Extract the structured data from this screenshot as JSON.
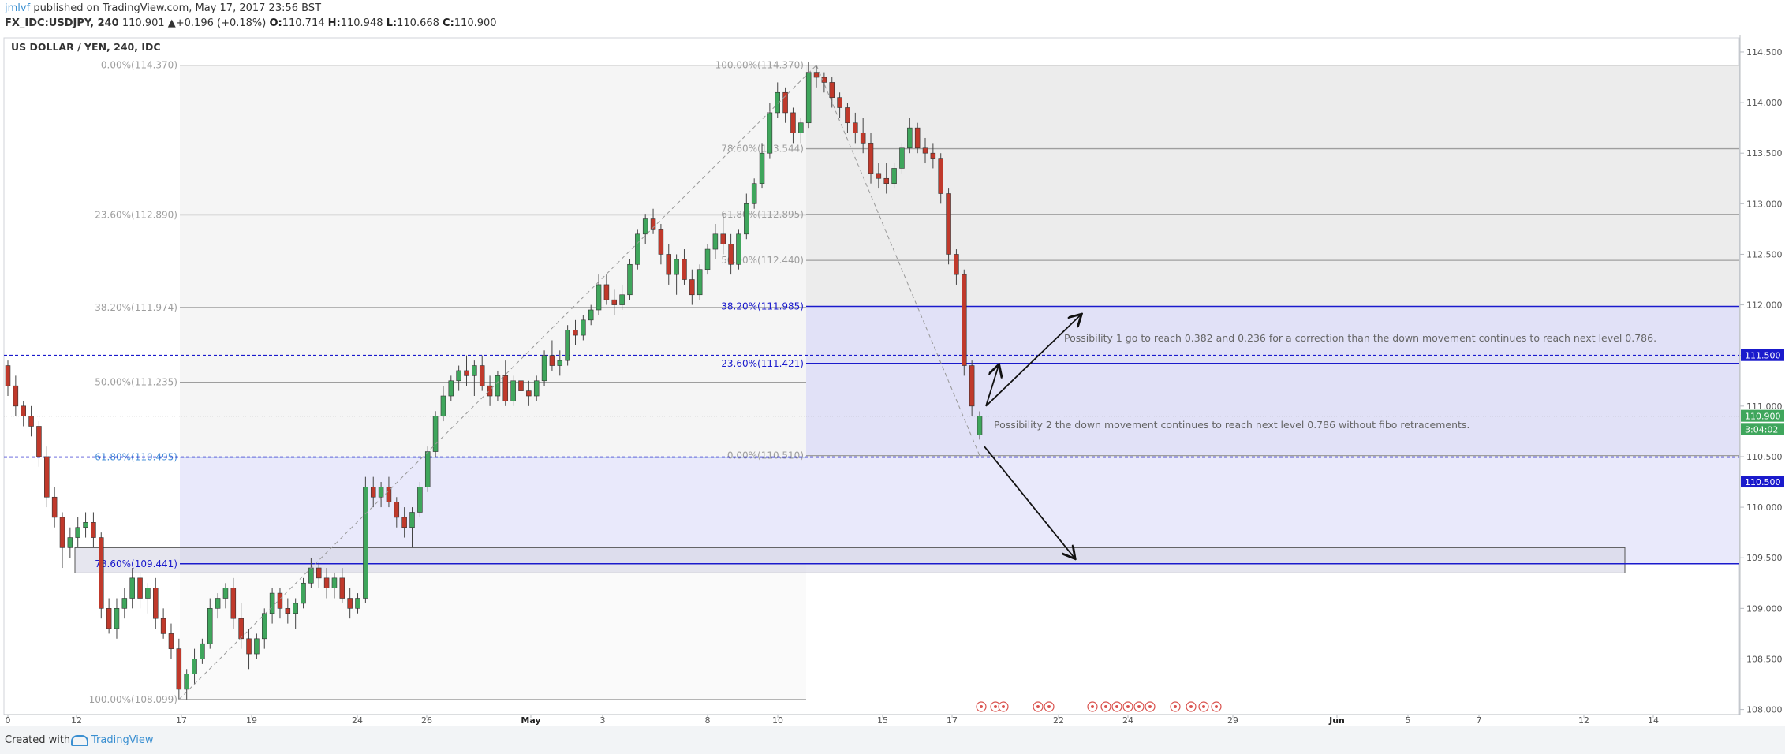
{
  "header": {
    "user": "jmlvf",
    "published_text": "published on TradingView.com, May 17, 2017 23:56 BST",
    "symbol_line": "FX_IDC:USDJPY, 240",
    "last_price": "110.901",
    "change_arrow": "▲",
    "change": "+0.196 (+0.18%)",
    "o_label": "O:",
    "o_value": "110.714",
    "h_label": "H:",
    "h_value": "110.948",
    "l_label": "L:",
    "l_value": "110.668",
    "c_label": "C:",
    "c_value": "110.900"
  },
  "footer": {
    "made_with": "Created with",
    "brand": "TradingView"
  },
  "chart_data": {
    "type": "candlestick",
    "title": "US DOLLAR / YEN, 240, IDC",
    "ylim": [
      107.95,
      114.64
    ],
    "y_ticks": [
      "114.500",
      "114.000",
      "113.500",
      "113.000",
      "112.500",
      "112.000",
      "111.500",
      "111.000",
      "110.500",
      "110.000",
      "109.500",
      "109.000",
      "108.500",
      "108.000"
    ],
    "x_ticks": [
      "0",
      "12",
      "17",
      "19",
      "24",
      "26",
      "May",
      "3",
      "8",
      "10",
      "15",
      "17",
      "22",
      "24",
      "29",
      "Jun",
      "5",
      "7",
      "12",
      "14"
    ],
    "price_badges": [
      {
        "value": "111.500",
        "style": "blue",
        "price": 111.5
      },
      {
        "value": "110.900",
        "style": "green",
        "price": 110.9
      },
      {
        "value": "3:04:02",
        "style": "green",
        "price": 110.77
      },
      {
        "value": "110.500",
        "style": "blue",
        "price": 110.25
      }
    ],
    "fib_retracement_1": {
      "from_price": 108.099,
      "to_price": 114.37,
      "levels": [
        {
          "label": "0.00%(114.370)",
          "price": 114.37,
          "color": "#9e9e9e"
        },
        {
          "label": "23.60%(112.890)",
          "price": 112.89,
          "color": "#9e9e9e"
        },
        {
          "label": "38.20%(111.974)",
          "price": 111.974,
          "color": "#9e9e9e"
        },
        {
          "label": "50.00%(111.235)",
          "price": 111.235,
          "color": "#9e9e9e"
        },
        {
          "label": "61.80%(110.495)",
          "price": 110.495,
          "color": "#4a90d9"
        },
        {
          "label": "78.60%(109.441)",
          "price": 109.441,
          "color": "#1a1acc"
        },
        {
          "label": "100.00%(108.099)",
          "price": 108.099,
          "color": "#9e9e9e"
        }
      ]
    },
    "fib_retracement_2": {
      "from_price": 114.37,
      "to_price": 110.51,
      "levels": [
        {
          "label": "100.00%(114.370)",
          "price": 114.37,
          "color": "#9e9e9e"
        },
        {
          "label": "78.60%(113.544)",
          "price": 113.544,
          "color": "#9e9e9e"
        },
        {
          "label": "61.80%(112.895)",
          "price": 112.895,
          "color": "#9e9e9e"
        },
        {
          "label": "50.00%(112.440)",
          "price": 112.44,
          "color": "#9e9e9e"
        },
        {
          "label": "38.20%(111.985)",
          "price": 111.985,
          "color": "#1a1acc"
        },
        {
          "label": "23.60%(111.421)",
          "price": 111.421,
          "color": "#1a1acc"
        },
        {
          "label": "0.00%(110.510)",
          "price": 110.51,
          "color": "#9e9e9e"
        }
      ]
    },
    "horizontal_lines": [
      {
        "price": 111.5,
        "style": "dashed",
        "color": "#1a1acc"
      },
      {
        "price": 110.495,
        "style": "dashed",
        "color": "#1a1acc"
      },
      {
        "price": 110.9,
        "style": "dotted",
        "color": "#888888"
      }
    ],
    "annotations": [
      {
        "text": "Possibility 1 go to reach 0.382 and 0.236 for a correction than the down movement continues to reach next level 0.786."
      },
      {
        "text": "Possibility 2 the down movement continues to reach next level 0.786 without fibo retracements."
      }
    ],
    "candles": [
      [
        111.4,
        111.45,
        111.1,
        111.2
      ],
      [
        111.2,
        111.3,
        110.9,
        111.0
      ],
      [
        111.0,
        111.05,
        110.8,
        110.9
      ],
      [
        110.9,
        111.0,
        110.7,
        110.8
      ],
      [
        110.8,
        110.85,
        110.4,
        110.5
      ],
      [
        110.5,
        110.6,
        110.0,
        110.1
      ],
      [
        110.1,
        110.2,
        109.8,
        109.9
      ],
      [
        109.9,
        109.95,
        109.4,
        109.6
      ],
      [
        109.6,
        109.8,
        109.5,
        109.7
      ],
      [
        109.7,
        109.9,
        109.6,
        109.8
      ],
      [
        109.8,
        109.95,
        109.7,
        109.85
      ],
      [
        109.85,
        109.95,
        109.6,
        109.7
      ],
      [
        109.7,
        109.75,
        108.9,
        109.0
      ],
      [
        109.0,
        109.1,
        108.75,
        108.8
      ],
      [
        108.8,
        109.1,
        108.7,
        109.0
      ],
      [
        109.0,
        109.2,
        108.9,
        109.1
      ],
      [
        109.1,
        109.4,
        109.0,
        109.3
      ],
      [
        109.3,
        109.35,
        109.0,
        109.1
      ],
      [
        109.1,
        109.25,
        108.95,
        109.2
      ],
      [
        109.2,
        109.3,
        108.8,
        108.9
      ],
      [
        108.9,
        109.0,
        108.7,
        108.75
      ],
      [
        108.75,
        108.85,
        108.5,
        108.6
      ],
      [
        108.6,
        108.7,
        108.1,
        108.2
      ],
      [
        108.2,
        108.4,
        108.1,
        108.35
      ],
      [
        108.35,
        108.6,
        108.25,
        108.5
      ],
      [
        108.5,
        108.7,
        108.45,
        108.65
      ],
      [
        108.65,
        109.1,
        108.6,
        109.0
      ],
      [
        109.0,
        109.15,
        108.9,
        109.1
      ],
      [
        109.1,
        109.25,
        109.0,
        109.2
      ],
      [
        109.2,
        109.3,
        108.8,
        108.9
      ],
      [
        108.9,
        109.05,
        108.6,
        108.7
      ],
      [
        108.7,
        108.8,
        108.4,
        108.55
      ],
      [
        108.55,
        108.75,
        108.5,
        108.7
      ],
      [
        108.7,
        109.0,
        108.6,
        108.95
      ],
      [
        108.95,
        109.2,
        108.85,
        109.15
      ],
      [
        109.15,
        109.2,
        108.9,
        109.0
      ],
      [
        109.0,
        109.1,
        108.85,
        108.95
      ],
      [
        108.95,
        109.1,
        108.8,
        109.05
      ],
      [
        109.05,
        109.3,
        109.0,
        109.25
      ],
      [
        109.25,
        109.5,
        109.2,
        109.4
      ],
      [
        109.4,
        109.45,
        109.2,
        109.3
      ],
      [
        109.3,
        109.4,
        109.1,
        109.2
      ],
      [
        109.2,
        109.35,
        109.1,
        109.3
      ],
      [
        109.3,
        109.4,
        109.05,
        109.1
      ],
      [
        109.1,
        109.2,
        108.9,
        109.0
      ],
      [
        109.0,
        109.15,
        108.95,
        109.1
      ],
      [
        109.1,
        110.3,
        109.05,
        110.2
      ],
      [
        110.2,
        110.3,
        110.0,
        110.1
      ],
      [
        110.1,
        110.25,
        110.0,
        110.2
      ],
      [
        110.2,
        110.3,
        110.0,
        110.05
      ],
      [
        110.05,
        110.1,
        109.8,
        109.9
      ],
      [
        109.9,
        110.0,
        109.7,
        109.8
      ],
      [
        109.8,
        110.0,
        109.6,
        109.95
      ],
      [
        109.95,
        110.25,
        109.9,
        110.2
      ],
      [
        110.2,
        110.6,
        110.15,
        110.55
      ],
      [
        110.55,
        110.95,
        110.5,
        110.9
      ],
      [
        110.9,
        111.2,
        110.85,
        111.1
      ],
      [
        111.1,
        111.3,
        111.05,
        111.25
      ],
      [
        111.25,
        111.4,
        111.15,
        111.35
      ],
      [
        111.35,
        111.5,
        111.2,
        111.3
      ],
      [
        111.3,
        111.45,
        111.1,
        111.4
      ],
      [
        111.4,
        111.5,
        111.15,
        111.2
      ],
      [
        111.2,
        111.3,
        111.0,
        111.1
      ],
      [
        111.1,
        111.35,
        111.05,
        111.3
      ],
      [
        111.3,
        111.45,
        111.0,
        111.05
      ],
      [
        111.05,
        111.3,
        111.0,
        111.25
      ],
      [
        111.25,
        111.4,
        111.1,
        111.15
      ],
      [
        111.15,
        111.25,
        111.0,
        111.1
      ],
      [
        111.1,
        111.3,
        111.05,
        111.25
      ],
      [
        111.25,
        111.55,
        111.2,
        111.5
      ],
      [
        111.5,
        111.65,
        111.35,
        111.4
      ],
      [
        111.4,
        111.55,
        111.3,
        111.45
      ],
      [
        111.45,
        111.8,
        111.4,
        111.75
      ],
      [
        111.75,
        111.85,
        111.6,
        111.7
      ],
      [
        111.7,
        111.9,
        111.65,
        111.85
      ],
      [
        111.85,
        112.0,
        111.8,
        111.95
      ],
      [
        111.95,
        112.3,
        111.9,
        112.2
      ],
      [
        112.2,
        112.3,
        112.0,
        112.05
      ],
      [
        112.05,
        112.15,
        111.9,
        112.0
      ],
      [
        112.0,
        112.2,
        111.95,
        112.1
      ],
      [
        112.1,
        112.45,
        112.05,
        112.4
      ],
      [
        112.4,
        112.75,
        112.35,
        112.7
      ],
      [
        112.7,
        112.9,
        112.6,
        112.85
      ],
      [
        112.85,
        112.95,
        112.7,
        112.75
      ],
      [
        112.75,
        112.8,
        112.4,
        112.5
      ],
      [
        112.5,
        112.6,
        112.2,
        112.3
      ],
      [
        112.3,
        112.5,
        112.1,
        112.45
      ],
      [
        112.45,
        112.55,
        112.2,
        112.25
      ],
      [
        112.25,
        112.35,
        112.0,
        112.1
      ],
      [
        112.1,
        112.4,
        112.05,
        112.35
      ],
      [
        112.35,
        112.6,
        112.3,
        112.55
      ],
      [
        112.55,
        112.8,
        112.45,
        112.7
      ],
      [
        112.7,
        112.9,
        112.5,
        112.6
      ],
      [
        112.6,
        112.7,
        112.3,
        112.4
      ],
      [
        112.4,
        112.75,
        112.35,
        112.7
      ],
      [
        112.7,
        113.1,
        112.65,
        113.0
      ],
      [
        113.0,
        113.25,
        112.95,
        113.2
      ],
      [
        113.2,
        113.6,
        113.15,
        113.5
      ],
      [
        113.5,
        114.0,
        113.45,
        113.9
      ],
      [
        113.9,
        114.2,
        113.85,
        114.1
      ],
      [
        114.1,
        114.15,
        113.8,
        113.9
      ],
      [
        113.9,
        113.95,
        113.6,
        113.7
      ],
      [
        113.7,
        113.85,
        113.6,
        113.8
      ],
      [
        113.8,
        114.4,
        113.75,
        114.3
      ],
      [
        114.3,
        114.37,
        114.15,
        114.25
      ],
      [
        114.25,
        114.3,
        114.1,
        114.2
      ],
      [
        114.2,
        114.25,
        113.95,
        114.05
      ],
      [
        114.05,
        114.1,
        113.85,
        113.95
      ],
      [
        113.95,
        114.0,
        113.7,
        113.8
      ],
      [
        113.8,
        113.9,
        113.6,
        113.7
      ],
      [
        113.7,
        113.85,
        113.5,
        113.6
      ],
      [
        113.6,
        113.7,
        113.2,
        113.3
      ],
      [
        113.3,
        113.4,
        113.15,
        113.25
      ],
      [
        113.25,
        113.4,
        113.1,
        113.2
      ],
      [
        113.2,
        113.4,
        113.15,
        113.35
      ],
      [
        113.35,
        113.6,
        113.3,
        113.55
      ],
      [
        113.55,
        113.85,
        113.5,
        113.75
      ],
      [
        113.75,
        113.8,
        113.5,
        113.55
      ],
      [
        113.55,
        113.65,
        113.4,
        113.5
      ],
      [
        113.5,
        113.6,
        113.35,
        113.45
      ],
      [
        113.45,
        113.5,
        113.0,
        113.1
      ],
      [
        113.1,
        113.15,
        112.4,
        112.5
      ],
      [
        112.5,
        112.55,
        112.2,
        112.3
      ],
      [
        112.3,
        112.35,
        111.3,
        111.4
      ],
      [
        111.4,
        111.45,
        110.9,
        111.0
      ],
      [
        110.714,
        110.948,
        110.668,
        110.9
      ]
    ]
  }
}
